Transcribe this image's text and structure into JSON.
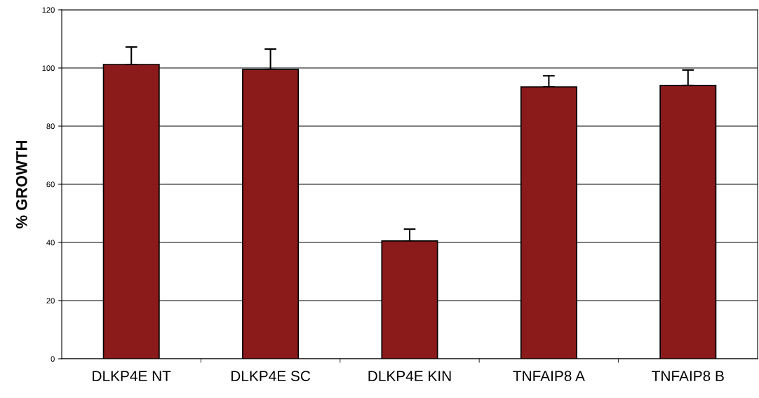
{
  "chart_data": {
    "type": "bar",
    "ylabel": "% GROWTH",
    "categories": [
      "DLKP4E NT",
      "DLKP4E SC",
      "DLKP4E KIN",
      "TNFAIP8 A",
      "TNFAIP8 B"
    ],
    "values": [
      101.2,
      99.5,
      40.5,
      93.5,
      94
    ],
    "errors": [
      6,
      7,
      4.1,
      3.8,
      5.3
    ],
    "color": "#8b1a1a",
    "ylim": [
      0,
      120
    ],
    "yticks": [
      0,
      20,
      40,
      60,
      80,
      100,
      120
    ],
    "grid": "y"
  }
}
